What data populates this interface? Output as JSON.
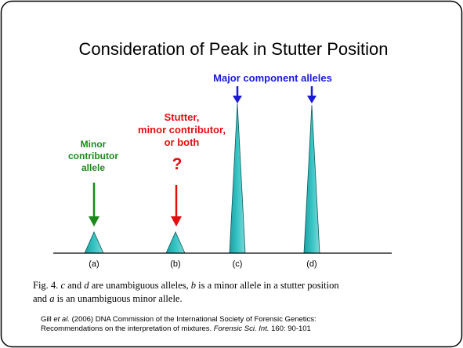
{
  "title": "Consideration of Peak in Stutter Position",
  "major_label": "Major component alleles",
  "minor_label": [
    "Minor",
    "contributor",
    "allele"
  ],
  "stutter_label": [
    "Stutter,",
    "minor contributor,",
    "or both"
  ],
  "question": "?",
  "peaks": [
    "(a)",
    "(b)",
    "(c)",
    "(d)"
  ],
  "caption": [
    "Fig. 4.",
    "c",
    "and",
    "d",
    "are unambiguous alleles,",
    "b",
    "is a minor allele in a stutter position",
    "and",
    "a",
    "is an unambiguous minor allele."
  ],
  "citation": [
    "Gill",
    "et al.",
    "(2006) DNA Commission of the International Society of Forensic Genetics:",
    "Recommendations on the interpretation of mixtures.",
    "Forensic Sci. Int.",
    "160: 90-101"
  ]
}
